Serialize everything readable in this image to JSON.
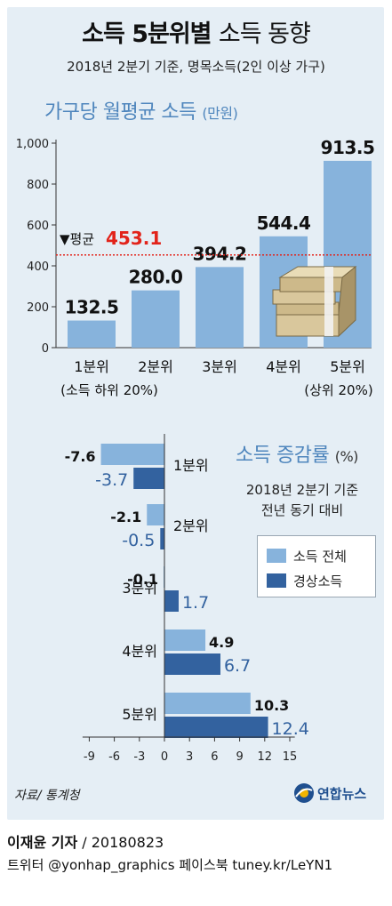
{
  "title": {
    "bold": "소득 5분위별",
    "light": "소득 동향"
  },
  "subtitle": "2018년 2분기 기준, 명목소득(2인 이상 가구)",
  "colors": {
    "light_bar": "#87b3dc",
    "dark_bar": "#33629f",
    "average_line": "#e2231a",
    "title_blue": "#4f86bd"
  },
  "chart_data": [
    {
      "type": "bar",
      "title": "가구당 월평균 소득",
      "unit": "(만원)",
      "categories": [
        "1분위",
        "2분위",
        "3분위",
        "4분위",
        "5분위"
      ],
      "category_sublabels": [
        "(소득 하위 20%)",
        "",
        "",
        "",
        "(상위 20%)"
      ],
      "values": [
        132.5,
        280.0,
        394.2,
        544.4,
        913.5
      ],
      "data_labels": [
        "132.5",
        "280.0",
        "394.2",
        "544.4",
        "913.5"
      ],
      "ylim": [
        0,
        1000
      ],
      "yticks": [
        0,
        200,
        400,
        600,
        800,
        1000
      ],
      "ytick_labels": [
        "0",
        "200",
        "400",
        "600",
        "800",
        "1,000"
      ],
      "average": {
        "label": "▼평균",
        "value": 453.1,
        "value_label": "453.1"
      },
      "grid": false
    },
    {
      "type": "bar",
      "orientation": "horizontal",
      "title": "소득 증감률",
      "unit": "(%)",
      "notes": [
        "2018년 2분기 기준",
        "전년 동기 대비"
      ],
      "categories": [
        "1분위",
        "2분위",
        "3분위",
        "4분위",
        "5분위"
      ],
      "series": [
        {
          "name": "소득 전체",
          "values": [
            -7.6,
            -2.1,
            -0.1,
            4.9,
            10.3
          ],
          "labels": [
            "-7.6",
            "-2.1",
            "-0.1",
            "4.9",
            "10.3"
          ]
        },
        {
          "name": "경상소득",
          "values": [
            -3.7,
            -0.5,
            1.7,
            6.7,
            12.4
          ],
          "labels": [
            "-3.7",
            "-0.5",
            "1.7",
            "6.7",
            "12.4"
          ]
        }
      ],
      "xlim": [
        -10,
        16
      ],
      "xticks": [
        -9,
        -6,
        -3,
        0,
        3,
        6,
        9,
        12,
        15
      ],
      "xtick_labels": [
        "-9",
        "-6",
        "-3",
        "0",
        "3",
        "6",
        "9",
        "12",
        "15"
      ],
      "legend": "right",
      "grid": false
    }
  ],
  "source": "자료/ 통계청",
  "logo": "연합뉴스",
  "credit": {
    "author": "이재윤 기자",
    "date": "/ 20180823"
  },
  "social": "트위터 @yonhap_graphics  페이스북 tuney.kr/LeYN1"
}
